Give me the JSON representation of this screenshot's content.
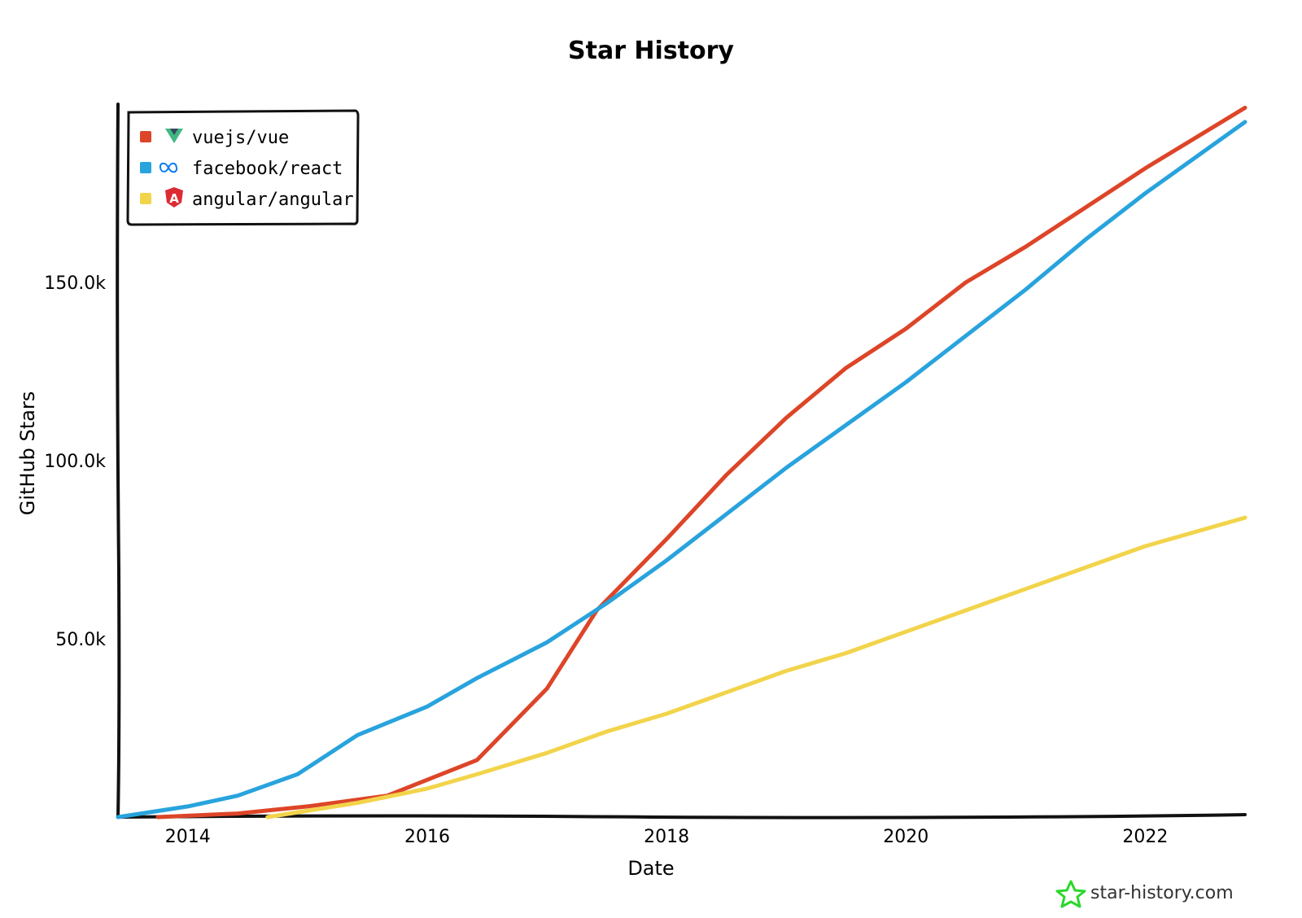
{
  "chart_data": {
    "type": "line",
    "title": "Star History",
    "xlabel": "Date",
    "ylabel": "GitHub Stars",
    "x_ticks": [
      "2014",
      "2016",
      "2018",
      "2020",
      "2022"
    ],
    "y_ticks": [
      "50.0k",
      "100.0k",
      "150.0k"
    ],
    "xlim": [
      "2013-06",
      "2022-11"
    ],
    "ylim": [
      0,
      200000
    ],
    "grid": false,
    "legend_position": "top-left",
    "series": [
      {
        "name": "vuejs/vue",
        "color": "#dd4528",
        "icon": "vue-logo-icon",
        "points": [
          [
            "2013-10",
            0
          ],
          [
            "2014-06",
            1000
          ],
          [
            "2015-01",
            3000
          ],
          [
            "2015-09",
            6000
          ],
          [
            "2016-06",
            16000
          ],
          [
            "2017-01",
            36000
          ],
          [
            "2017-06",
            58000
          ],
          [
            "2018-01",
            78000
          ],
          [
            "2018-07",
            96000
          ],
          [
            "2019-01",
            112000
          ],
          [
            "2019-07",
            126000
          ],
          [
            "2020-01",
            137000
          ],
          [
            "2020-07",
            150000
          ],
          [
            "2021-01",
            160000
          ],
          [
            "2021-07",
            171000
          ],
          [
            "2022-01",
            182000
          ],
          [
            "2022-11",
            199000
          ]
        ]
      },
      {
        "name": "facebook/react",
        "color": "#28a3dd",
        "icon": "meta-logo-icon",
        "points": [
          [
            "2013-06",
            0
          ],
          [
            "2014-01",
            3000
          ],
          [
            "2014-06",
            6000
          ],
          [
            "2014-12",
            12000
          ],
          [
            "2015-06",
            23000
          ],
          [
            "2016-01",
            31000
          ],
          [
            "2016-06",
            39000
          ],
          [
            "2017-01",
            49000
          ],
          [
            "2017-07",
            60000
          ],
          [
            "2018-01",
            72000
          ],
          [
            "2018-07",
            85000
          ],
          [
            "2019-01",
            98000
          ],
          [
            "2019-07",
            110000
          ],
          [
            "2020-01",
            122000
          ],
          [
            "2020-07",
            135000
          ],
          [
            "2021-01",
            148000
          ],
          [
            "2021-07",
            162000
          ],
          [
            "2022-01",
            175000
          ],
          [
            "2022-11",
            195000
          ]
        ]
      },
      {
        "name": "angular/angular",
        "color": "#f2d44b",
        "icon": "angular-logo-icon",
        "points": [
          [
            "2014-09",
            0
          ],
          [
            "2015-06",
            4000
          ],
          [
            "2016-01",
            8000
          ],
          [
            "2016-06",
            12000
          ],
          [
            "2017-01",
            18000
          ],
          [
            "2017-07",
            24000
          ],
          [
            "2018-01",
            29000
          ],
          [
            "2018-07",
            35000
          ],
          [
            "2019-01",
            41000
          ],
          [
            "2019-07",
            46000
          ],
          [
            "2020-01",
            52000
          ],
          [
            "2020-07",
            58000
          ],
          [
            "2021-01",
            64000
          ],
          [
            "2021-07",
            70000
          ],
          [
            "2022-01",
            76000
          ],
          [
            "2022-11",
            84000
          ]
        ]
      }
    ]
  },
  "watermark": {
    "text": "star-history.com",
    "icon": "star-logo-icon",
    "icon_color": "#2bd72b"
  }
}
